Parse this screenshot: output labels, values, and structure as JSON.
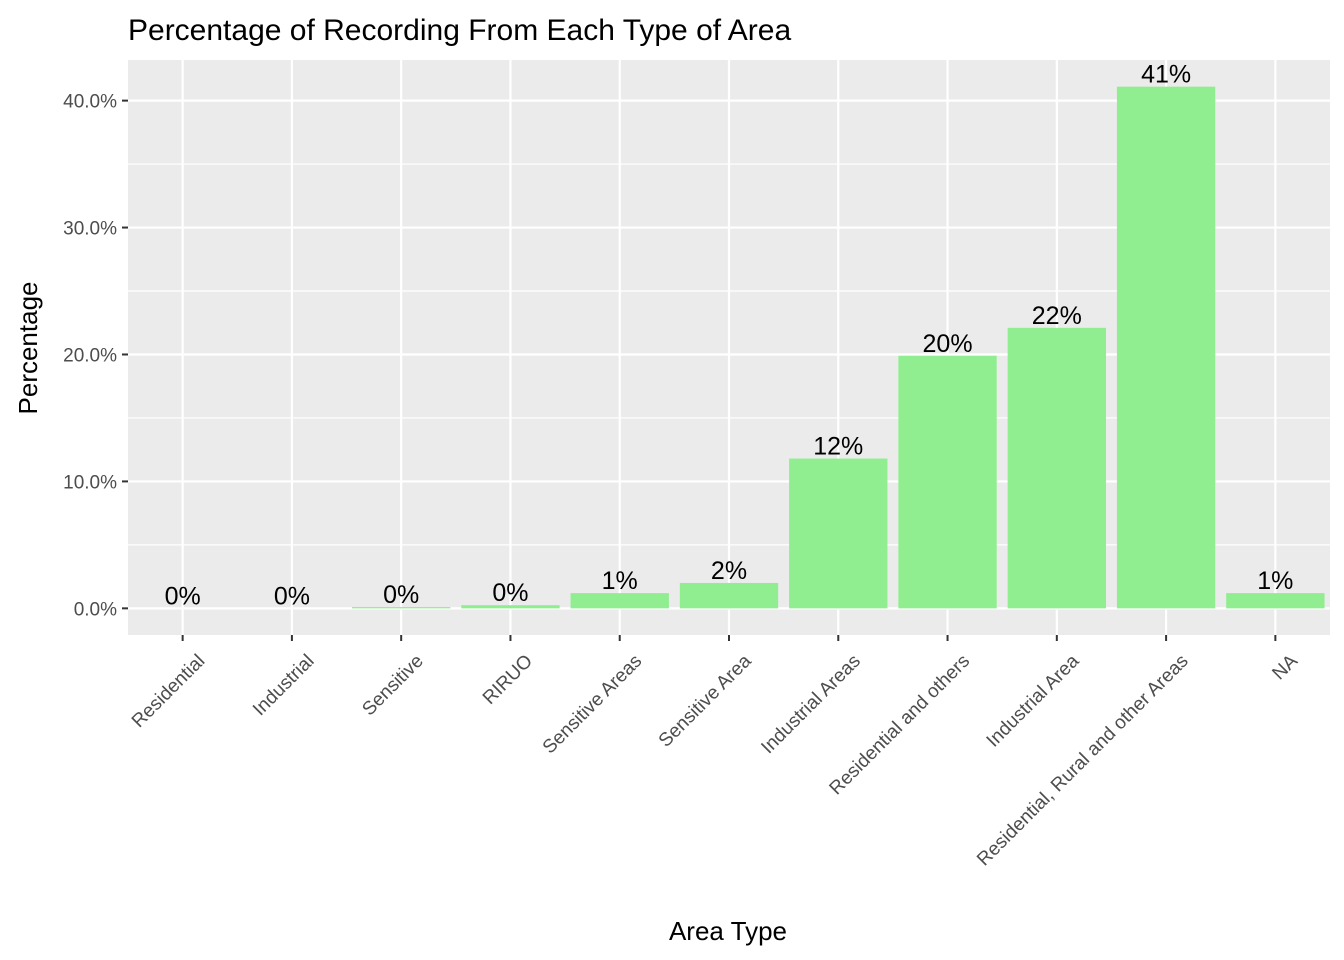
{
  "chart_data": {
    "type": "bar",
    "title": "Percentage of Recording From Each Type of Area",
    "xlabel": "Area Type",
    "ylabel": "Percentage",
    "categories": [
      "Residential",
      "Industrial",
      "Sensitive",
      "RIRUO",
      "Sensitive Areas",
      "Sensitive Area",
      "Industrial Areas",
      "Residential and others",
      "Industrial Area",
      "Residential, Rural and other Areas",
      "NA"
    ],
    "values": [
      0.0,
      0.0,
      0.1,
      0.25,
      1.2,
      2.0,
      11.8,
      19.9,
      22.1,
      41.1,
      1.2
    ],
    "data_labels": [
      "0%",
      "0%",
      "0%",
      "0%",
      "1%",
      "2%",
      "12%",
      "20%",
      "22%",
      "41%",
      "1%"
    ],
    "yticks": [
      0,
      10,
      20,
      30,
      40
    ],
    "ytick_labels": [
      "0.0%",
      "10.0%",
      "20.0%",
      "30.0%",
      "40.0%"
    ],
    "ylim": [
      -2.1,
      43.2
    ],
    "grid": true,
    "legend": "none",
    "colors": {
      "bar": "#90ee90",
      "panel": "#ebebeb",
      "grid": "#ffffff"
    }
  }
}
